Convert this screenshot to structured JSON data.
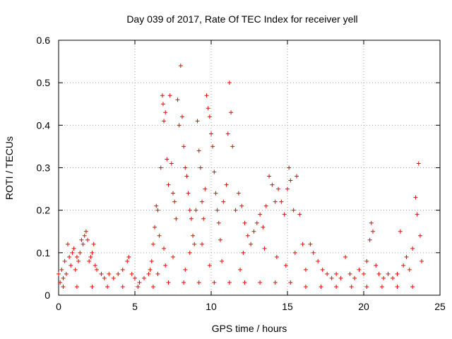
{
  "chart_data": {
    "type": "scatter",
    "title": "Day 039 of 2017, Rate Of TEC Index for receiver yell",
    "xlabel": "GPS time / hours",
    "ylabel": "ROTI / TECUs",
    "xlim": [
      0,
      25
    ],
    "ylim": [
      0,
      0.6
    ],
    "xticks": [
      "0",
      "5",
      "10",
      "15",
      "20",
      "25"
    ],
    "yticks": [
      "0",
      "0.1",
      "0.2",
      "0.3",
      "0.4",
      "0.5",
      "0.6"
    ],
    "grid": true,
    "marker": "+",
    "color": "#ff0000",
    "series": [
      {
        "points": [
          [
            0.0,
            0.05
          ],
          [
            0.1,
            0.03
          ],
          [
            0.2,
            0.06
          ],
          [
            0.3,
            0.04
          ],
          [
            0.4,
            0.08
          ],
          [
            0.5,
            0.05
          ],
          [
            0.6,
            0.12
          ],
          [
            0.7,
            0.09
          ],
          [
            0.8,
            0.07
          ],
          [
            0.9,
            0.1
          ],
          [
            1.0,
            0.11
          ],
          [
            1.1,
            0.06
          ],
          [
            1.2,
            0.09
          ],
          [
            1.3,
            0.08
          ],
          [
            1.4,
            0.1
          ],
          [
            1.5,
            0.13
          ],
          [
            1.6,
            0.12
          ],
          [
            1.7,
            0.14
          ],
          [
            1.8,
            0.15
          ],
          [
            1.9,
            0.13
          ],
          [
            2.0,
            0.08
          ],
          [
            2.1,
            0.09
          ],
          [
            2.2,
            0.1
          ],
          [
            2.3,
            0.12
          ],
          [
            2.4,
            0.07
          ],
          [
            2.5,
            0.06
          ],
          [
            2.8,
            0.05
          ],
          [
            3.0,
            0.04
          ],
          [
            3.3,
            0.05
          ],
          [
            3.6,
            0.04
          ],
          [
            3.9,
            0.05
          ],
          [
            4.2,
            0.06
          ],
          [
            4.5,
            0.08
          ],
          [
            4.6,
            0.09
          ],
          [
            4.8,
            0.05
          ],
          [
            5.0,
            0.04
          ],
          [
            5.3,
            0.03
          ],
          [
            5.6,
            0.04
          ],
          [
            5.9,
            0.05
          ],
          [
            6.0,
            0.06
          ],
          [
            6.1,
            0.08
          ],
          [
            6.2,
            0.12
          ],
          [
            6.3,
            0.16
          ],
          [
            6.4,
            0.21
          ],
          [
            6.5,
            0.2
          ],
          [
            6.6,
            0.14
          ],
          [
            6.7,
            0.3
          ],
          [
            6.8,
            0.47
          ],
          [
            6.85,
            0.45
          ],
          [
            6.9,
            0.41
          ],
          [
            7.0,
            0.43
          ],
          [
            7.1,
            0.32
          ],
          [
            7.2,
            0.26
          ],
          [
            7.3,
            0.47
          ],
          [
            7.4,
            0.31
          ],
          [
            7.5,
            0.24
          ],
          [
            7.6,
            0.22
          ],
          [
            7.7,
            0.18
          ],
          [
            7.8,
            0.46
          ],
          [
            7.9,
            0.4
          ],
          [
            8.0,
            0.54
          ],
          [
            8.1,
            0.42
          ],
          [
            8.2,
            0.35
          ],
          [
            8.3,
            0.3
          ],
          [
            8.4,
            0.28
          ],
          [
            8.5,
            0.24
          ],
          [
            8.6,
            0.2
          ],
          [
            8.7,
            0.18
          ],
          [
            8.8,
            0.14
          ],
          [
            8.9,
            0.12
          ],
          [
            9.0,
            0.2
          ],
          [
            9.1,
            0.41
          ],
          [
            9.2,
            0.34
          ],
          [
            9.3,
            0.3
          ],
          [
            9.4,
            0.22
          ],
          [
            9.5,
            0.18
          ],
          [
            9.6,
            0.25
          ],
          [
            9.7,
            0.47
          ],
          [
            9.8,
            0.44
          ],
          [
            9.9,
            0.42
          ],
          [
            10.0,
            0.38
          ],
          [
            10.1,
            0.35
          ],
          [
            10.2,
            0.29
          ],
          [
            10.3,
            0.24
          ],
          [
            10.4,
            0.2
          ],
          [
            10.5,
            0.17
          ],
          [
            10.6,
            0.13
          ],
          [
            10.8,
            0.22
          ],
          [
            11.0,
            0.26
          ],
          [
            11.1,
            0.38
          ],
          [
            11.2,
            0.5
          ],
          [
            11.3,
            0.43
          ],
          [
            11.4,
            0.35
          ],
          [
            11.6,
            0.2
          ],
          [
            11.8,
            0.24
          ],
          [
            12.0,
            0.21
          ],
          [
            12.2,
            0.17
          ],
          [
            12.4,
            0.14
          ],
          [
            12.6,
            0.12
          ],
          [
            12.8,
            0.15
          ],
          [
            13.0,
            0.17
          ],
          [
            13.2,
            0.19
          ],
          [
            13.4,
            0.16
          ],
          [
            13.6,
            0.21
          ],
          [
            13.8,
            0.28
          ],
          [
            14.0,
            0.26
          ],
          [
            14.2,
            0.22
          ],
          [
            14.4,
            0.25
          ],
          [
            14.6,
            0.22
          ],
          [
            14.8,
            0.19
          ],
          [
            15.0,
            0.25
          ],
          [
            15.1,
            0.3
          ],
          [
            15.2,
            0.27
          ],
          [
            15.4,
            0.2
          ],
          [
            15.6,
            0.28
          ],
          [
            15.8,
            0.19
          ],
          [
            16.0,
            0.12
          ],
          [
            16.2,
            0.06
          ],
          [
            16.5,
            0.12
          ],
          [
            16.7,
            0.1
          ],
          [
            17.0,
            0.08
          ],
          [
            17.3,
            0.06
          ],
          [
            17.6,
            0.05
          ],
          [
            17.9,
            0.04
          ],
          [
            18.2,
            0.05
          ],
          [
            18.5,
            0.04
          ],
          [
            18.8,
            0.09
          ],
          [
            19.1,
            0.05
          ],
          [
            19.4,
            0.04
          ],
          [
            19.7,
            0.06
          ],
          [
            20.0,
            0.05
          ],
          [
            20.2,
            0.08
          ],
          [
            20.4,
            0.13
          ],
          [
            20.5,
            0.17
          ],
          [
            20.6,
            0.15
          ],
          [
            20.8,
            0.07
          ],
          [
            21.0,
            0.05
          ],
          [
            21.3,
            0.04
          ],
          [
            21.6,
            0.05
          ],
          [
            21.9,
            0.04
          ],
          [
            22.2,
            0.05
          ],
          [
            22.4,
            0.15
          ],
          [
            22.6,
            0.07
          ],
          [
            22.8,
            0.09
          ],
          [
            23.0,
            0.06
          ],
          [
            23.2,
            0.11
          ],
          [
            23.4,
            0.23
          ],
          [
            23.5,
            0.19
          ],
          [
            23.6,
            0.31
          ],
          [
            23.7,
            0.14
          ],
          [
            23.8,
            0.08
          ],
          [
            0.3,
            0.02
          ],
          [
            1.2,
            0.02
          ],
          [
            2.2,
            0.02
          ],
          [
            3.2,
            0.02
          ],
          [
            4.2,
            0.02
          ],
          [
            5.2,
            0.02
          ],
          [
            6.2,
            0.02
          ],
          [
            7.2,
            0.03
          ],
          [
            8.2,
            0.03
          ],
          [
            9.2,
            0.03
          ],
          [
            10.2,
            0.03
          ],
          [
            11.2,
            0.03
          ],
          [
            12.2,
            0.03
          ],
          [
            13.2,
            0.03
          ],
          [
            14.2,
            0.03
          ],
          [
            15.2,
            0.03
          ],
          [
            16.2,
            0.02
          ],
          [
            17.2,
            0.02
          ],
          [
            18.2,
            0.02
          ],
          [
            19.2,
            0.02
          ],
          [
            20.2,
            0.02
          ],
          [
            21.2,
            0.02
          ],
          [
            22.2,
            0.02
          ],
          [
            23.2,
            0.02
          ],
          [
            6.9,
            0.11
          ],
          [
            7.5,
            0.09
          ],
          [
            8.6,
            0.1
          ],
          [
            9.4,
            0.12
          ],
          [
            10.7,
            0.08
          ],
          [
            12.1,
            0.1
          ],
          [
            13.5,
            0.11
          ],
          [
            14.3,
            0.09
          ],
          [
            15.5,
            0.1
          ],
          [
            14.9,
            0.07
          ],
          [
            11.9,
            0.06
          ],
          [
            9.9,
            0.07
          ],
          [
            8.3,
            0.06
          ],
          [
            7.0,
            0.07
          ],
          [
            6.5,
            0.05
          ]
        ]
      }
    ]
  }
}
